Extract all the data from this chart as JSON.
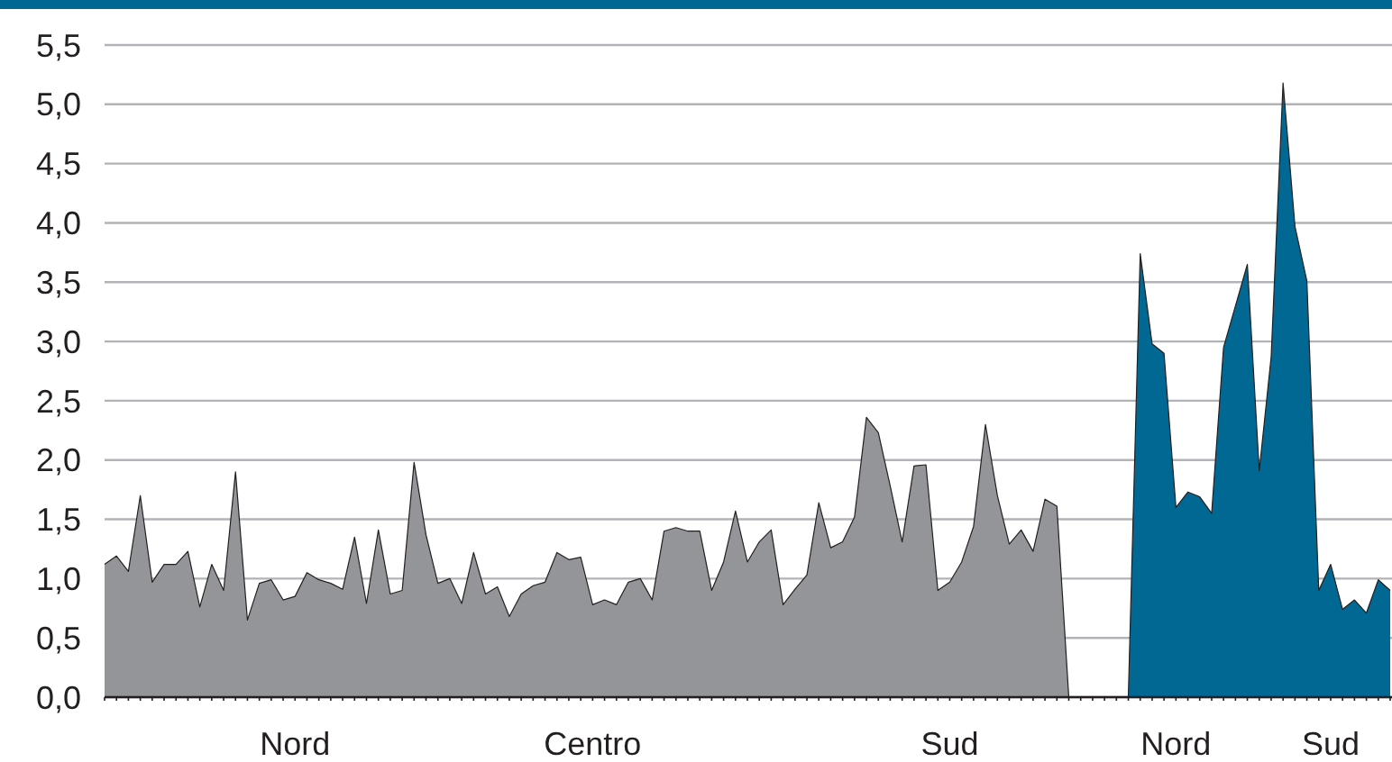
{
  "chart_data": {
    "type": "area",
    "categories": [
      null,
      null,
      null,
      null,
      null,
      null,
      null,
      null,
      null,
      null,
      null,
      null,
      null,
      null,
      null,
      null,
      "Nord",
      null,
      null,
      null,
      null,
      null,
      null,
      null,
      null,
      null,
      null,
      null,
      null,
      null,
      null,
      null,
      null,
      null,
      null,
      null,
      null,
      null,
      null,
      null,
      null,
      "Centro",
      null,
      null,
      null,
      null,
      null,
      null,
      null,
      null,
      null,
      null,
      null,
      null,
      null,
      null,
      null,
      null,
      null,
      null,
      null,
      null,
      null,
      null,
      null,
      null,
      null,
      null,
      null,
      null,
      null,
      "Sud",
      null,
      null,
      null,
      null,
      null,
      null,
      null,
      null,
      null,
      null,
      null,
      null,
      null,
      null,
      null,
      null,
      null,
      null,
      "Nord",
      null,
      null,
      null,
      null,
      null,
      null,
      null,
      null,
      null,
      null,
      null,
      null,
      "Sud",
      null,
      null,
      null,
      null,
      null
    ],
    "series": [
      {
        "color": "#939598",
        "values": [
          1.12,
          1.19,
          1.06,
          1.7,
          0.97,
          1.12,
          1.12,
          1.23,
          0.76,
          1.12,
          0.9,
          1.9,
          0.65,
          0.96,
          0.99,
          0.82,
          0.85,
          1.05,
          0.99,
          0.96,
          0.91,
          1.35,
          0.79,
          1.41,
          0.87,
          0.9,
          1.98,
          1.37,
          0.96,
          1.0,
          0.79,
          1.22,
          0.87,
          0.93,
          0.68,
          0.87,
          0.94,
          0.97,
          1.22,
          1.16,
          1.18,
          0.78,
          0.82,
          0.78,
          0.97,
          1.0,
          0.82,
          1.4,
          1.43,
          1.4,
          1.4,
          0.9,
          1.14,
          1.57,
          1.14,
          1.31,
          1.41,
          0.78,
          0.91,
          1.03,
          1.64,
          1.26,
          1.31,
          1.52,
          2.36,
          2.23,
          1.78,
          1.31,
          1.95,
          1.96,
          0.9,
          0.97,
          1.14,
          1.44,
          2.3,
          1.7,
          1.29,
          1.41,
          1.23,
          1.67,
          1.61,
          0,
          0,
          0,
          0,
          0,
          null,
          null,
          null,
          null,
          null,
          null,
          null,
          null,
          null,
          null,
          null,
          null,
          null,
          null,
          null,
          null,
          null,
          null,
          null,
          null,
          null,
          null,
          null
        ]
      },
      {
        "color": "#006893",
        "values": [
          null,
          null,
          null,
          null,
          null,
          null,
          null,
          null,
          null,
          null,
          null,
          null,
          null,
          null,
          null,
          null,
          null,
          null,
          null,
          null,
          null,
          null,
          null,
          null,
          null,
          null,
          null,
          null,
          null,
          null,
          null,
          null,
          null,
          null,
          null,
          null,
          null,
          null,
          null,
          null,
          null,
          null,
          null,
          null,
          null,
          null,
          null,
          null,
          null,
          null,
          null,
          null,
          null,
          null,
          null,
          null,
          null,
          null,
          null,
          null,
          null,
          null,
          null,
          null,
          null,
          null,
          null,
          null,
          null,
          null,
          null,
          null,
          null,
          null,
          null,
          null,
          null,
          null,
          null,
          null,
          null,
          null,
          null,
          null,
          null,
          null,
          0,
          3.74,
          2.98,
          2.9,
          1.6,
          1.73,
          1.69,
          1.55,
          2.95,
          3.3,
          3.65,
          1.91,
          2.87,
          5.18,
          3.97,
          3.51,
          0.9,
          1.12,
          0.74,
          0.82,
          0.71,
          0.99,
          0.9
        ]
      }
    ],
    "ylim": [
      0,
      5.5
    ],
    "yticks": [
      {
        "value": 0,
        "label": "0,0"
      },
      {
        "value": 0.5,
        "label": "0,5"
      },
      {
        "value": 1,
        "label": "1,0"
      },
      {
        "value": 1.5,
        "label": "1,5"
      },
      {
        "value": 2,
        "label": "2,0"
      },
      {
        "value": 2.5,
        "label": "2,5"
      },
      {
        "value": 3,
        "label": "3,0"
      },
      {
        "value": 3.5,
        "label": "3,5"
      },
      {
        "value": 4,
        "label": "4,0"
      },
      {
        "value": 4.5,
        "label": "4,5"
      },
      {
        "value": 5,
        "label": "5,0"
      },
      {
        "value": 5.5,
        "label": "5,5"
      }
    ],
    "grid": "y"
  }
}
